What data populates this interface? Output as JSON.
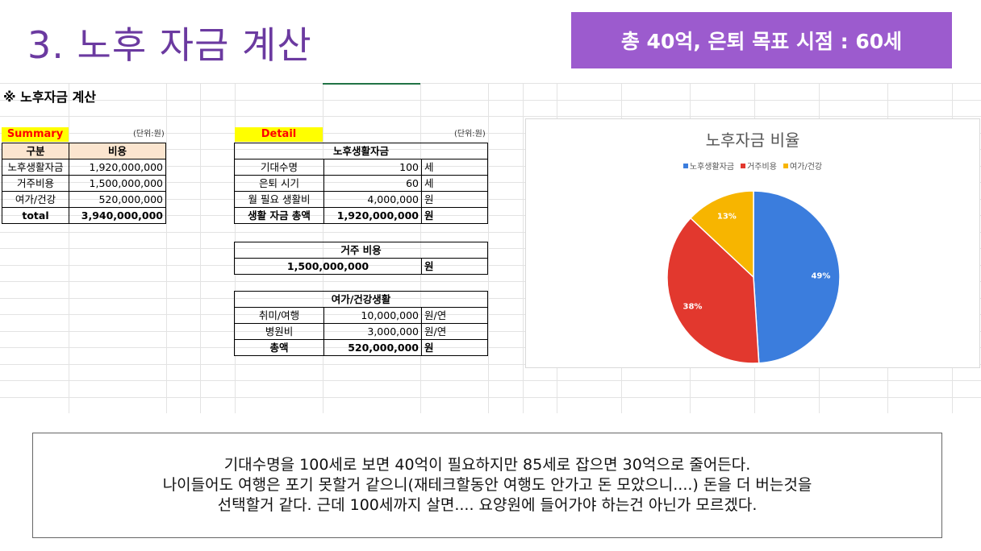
{
  "slide": {
    "title": "3. 노후 자금 계산",
    "banner": "총 40억, 은퇴 목표 시점 : 60세"
  },
  "sheet": {
    "heading": "※ 노후자금 계산",
    "summary": {
      "label": "Summary",
      "unit": "(단위:원)",
      "headers": [
        "구분",
        "비용"
      ],
      "rows": [
        {
          "name": "노후생활자금",
          "value": "1,920,000,000"
        },
        {
          "name": "거주비용",
          "value": "1,500,000,000"
        },
        {
          "name": "여가/건강",
          "value": "520,000,000"
        }
      ],
      "total": {
        "name": "total",
        "value": "3,940,000,000"
      }
    },
    "detail": {
      "label": "Detail",
      "unit": "(단위:원)",
      "living": {
        "title": "노후생활자금",
        "rows": [
          {
            "name": "기대수명",
            "value": "100",
            "unit": "세"
          },
          {
            "name": "은퇴 시기",
            "value": "60",
            "unit": "세"
          },
          {
            "name": "월 필요 생활비",
            "value": "4,000,000",
            "unit": "원"
          },
          {
            "name": "생활 자금 총액",
            "value": "1,920,000,000",
            "unit": "원"
          }
        ]
      },
      "housing": {
        "title": "거주 비용",
        "value": "1,500,000,000",
        "unit": "원"
      },
      "leisure": {
        "title": "여가/건강생활",
        "rows": [
          {
            "name": "취미/여행",
            "value": "10,000,000",
            "unit": "원/연"
          },
          {
            "name": "병원비",
            "value": "3,000,000",
            "unit": "원/연"
          },
          {
            "name": "총액",
            "value": "520,000,000",
            "unit": "원"
          }
        ]
      }
    }
  },
  "chart_data": {
    "type": "pie",
    "title": "노후자금 비율",
    "legend_position": "top",
    "categories": [
      "노후생활자금",
      "거주비용",
      "여가/건강"
    ],
    "values": [
      49,
      38,
      13
    ],
    "labels": [
      "49%",
      "38%",
      "13%"
    ],
    "colors": [
      "#3b7ddd",
      "#e2382e",
      "#f7b500"
    ]
  },
  "note": {
    "lines": [
      "기대수명을 100세로 보면 40억이 필요하지만 85세로 잡으면 30억으로 줄어든다.",
      "나이들어도 여행은 포기 못할거 같으니(재테크할동안 여행도 안가고 돈 모았으니....) 돈을 더 버는것을",
      "선택할거 같다. 근데 100세까지 살면.... 요양원에 들어가야 하는건 아닌가 모르겠다."
    ]
  }
}
